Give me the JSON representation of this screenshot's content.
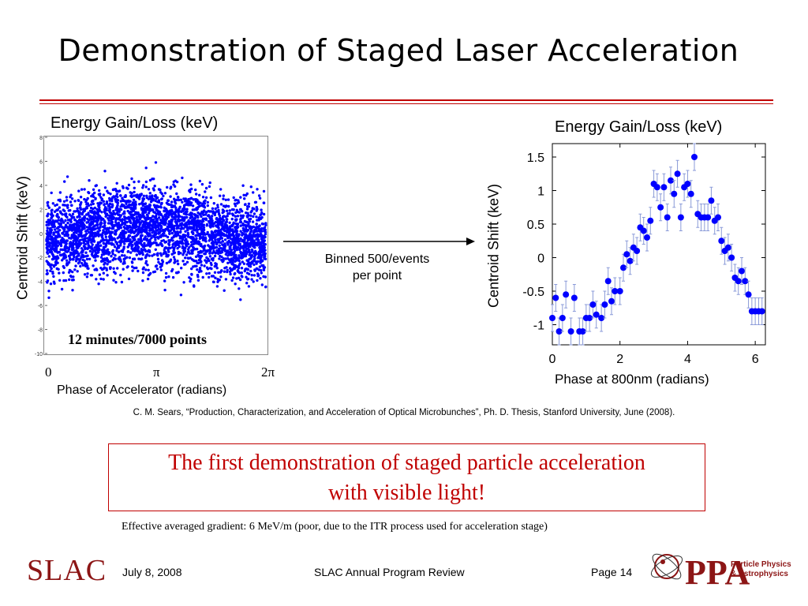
{
  "slide": {
    "title": "Demonstration of Staged Laser Acceleration",
    "binned_note_line1": "Binned 500/events",
    "binned_note_line2": "per point",
    "citation": "C. M. Sears, “Production, Characterization, and Acceleration of Optical Microbunches”, Ph. D. Thesis, Stanford University, June (2008).",
    "callout_line1": "The first demonstration of staged particle acceleration",
    "callout_line2": "with visible light!",
    "gradient_note": "Effective averaged gradient: 6 MeV/m (poor, due to the ITR process used for acceleration stage)",
    "accent_color": "#c00000"
  },
  "footer": {
    "date": "July 8, 2008",
    "event": "SLAC Annual Program Review",
    "page": "Page 14",
    "slac_logo": "SLAC",
    "ppa_logo": "PPA",
    "ppa_sub_line1": "Particle Physics",
    "ppa_sub_line2": "& Astrophysics"
  },
  "chart_data": [
    {
      "type": "scatter",
      "title": "Energy Gain/Loss (keV)",
      "xlabel": "Phase of Accelerator (radians)",
      "ylabel": "Centroid Shift (keV)",
      "x_tick_labels": [
        "0",
        "π",
        "2π"
      ],
      "y_ticks": [
        8,
        6,
        4,
        2,
        0,
        -2,
        -4,
        -6,
        -8,
        -10
      ],
      "ylim": [
        -10,
        8
      ],
      "annotation": "12 minutes/7000 points",
      "point_count": 7000,
      "marker_color": "#0000ff",
      "grid": false
    },
    {
      "type": "scatter",
      "title": "Energy Gain/Loss (keV)",
      "xlabel": "Phase at 800nm (radians)",
      "ylabel": "Centroid Shift (keV)",
      "x_ticks": [
        0,
        2,
        4,
        6
      ],
      "y_ticks": [
        1.5,
        1,
        0.5,
        0,
        -0.5,
        -1
      ],
      "xlim": [
        0,
        6.3
      ],
      "ylim": [
        -1.3,
        1.7
      ],
      "marker_color": "#0000ff",
      "error_bar": 0.2,
      "grid": false,
      "x": [
        0.0,
        0.1,
        0.2,
        0.3,
        0.4,
        0.55,
        0.65,
        0.8,
        0.9,
        1.0,
        1.1,
        1.2,
        1.3,
        1.45,
        1.55,
        1.65,
        1.75,
        1.85,
        2.0,
        2.1,
        2.2,
        2.3,
        2.4,
        2.5,
        2.6,
        2.7,
        2.8,
        2.9,
        3.0,
        3.1,
        3.2,
        3.3,
        3.4,
        3.5,
        3.6,
        3.7,
        3.8,
        3.9,
        4.0,
        4.1,
        4.2,
        4.3,
        4.4,
        4.5,
        4.6,
        4.7,
        4.8,
        4.9,
        5.0,
        5.1,
        5.2,
        5.3,
        5.4,
        5.5,
        5.6,
        5.7,
        5.8,
        5.9,
        6.0,
        6.1,
        6.2
      ],
      "y": [
        -0.9,
        -0.6,
        -1.1,
        -0.9,
        -0.55,
        -1.1,
        -0.6,
        -1.1,
        -1.1,
        -0.9,
        -0.9,
        -0.7,
        -0.85,
        -0.9,
        -0.7,
        -0.35,
        -0.65,
        -0.5,
        -0.5,
        -0.15,
        0.05,
        -0.05,
        0.15,
        0.1,
        0.45,
        0.4,
        0.3,
        0.55,
        1.1,
        1.05,
        0.75,
        1.05,
        0.6,
        1.15,
        0.95,
        1.25,
        0.6,
        1.05,
        1.1,
        0.95,
        1.5,
        0.65,
        0.6,
        0.6,
        0.6,
        0.85,
        0.55,
        0.6,
        0.25,
        0.1,
        0.15,
        0.0,
        -0.3,
        -0.35,
        -0.2,
        -0.35,
        -0.55,
        -0.8,
        -0.8,
        -0.8,
        -0.8
      ]
    }
  ]
}
